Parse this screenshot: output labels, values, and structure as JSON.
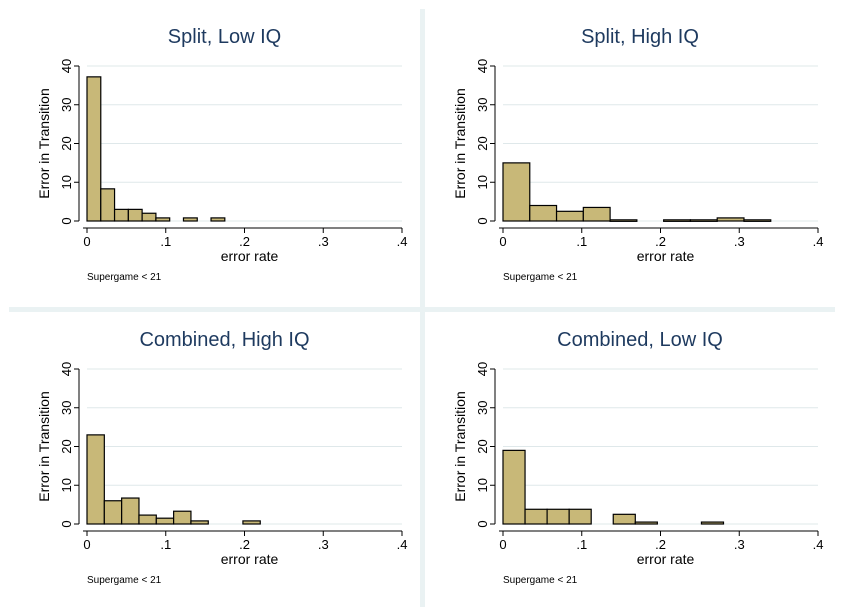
{
  "chart_data": [
    {
      "type": "bar",
      "title": "Split, Low IQ",
      "xlabel": "error rate",
      "ylabel": "Error in Transition",
      "note": "Supergame < 21",
      "xlim": [
        0,
        0.4
      ],
      "ylim": [
        0,
        40
      ],
      "xticks": [
        0,
        0.1,
        0.2,
        0.3,
        0.4
      ],
      "xtick_labels": [
        "0",
        ".1",
        ".2",
        ".3",
        ".4"
      ],
      "yticks": [
        0,
        10,
        20,
        30,
        40
      ],
      "ytick_labels": [
        "0",
        "10",
        "20",
        "30",
        "40"
      ],
      "grid": true,
      "bins": [
        {
          "x0": 0.0,
          "x1": 0.0175,
          "y": 37.2
        },
        {
          "x0": 0.0175,
          "x1": 0.035,
          "y": 8.3
        },
        {
          "x0": 0.035,
          "x1": 0.0525,
          "y": 3.0
        },
        {
          "x0": 0.0525,
          "x1": 0.07,
          "y": 3.0
        },
        {
          "x0": 0.07,
          "x1": 0.0875,
          "y": 2.0
        },
        {
          "x0": 0.0875,
          "x1": 0.105,
          "y": 0.8
        },
        {
          "x0": 0.1225,
          "x1": 0.14,
          "y": 0.8
        },
        {
          "x0": 0.1575,
          "x1": 0.175,
          "y": 0.8
        }
      ],
      "color": "#c8b878"
    },
    {
      "type": "bar",
      "title": "Split, High IQ",
      "xlabel": "error rate",
      "ylabel": "Error in Transition",
      "note": "Supergame < 21",
      "xlim": [
        0,
        0.4
      ],
      "ylim": [
        0,
        40
      ],
      "xticks": [
        0,
        0.1,
        0.2,
        0.3,
        0.4
      ],
      "xtick_labels": [
        "0",
        ".1",
        ".2",
        ".3",
        ".4"
      ],
      "yticks": [
        0,
        10,
        20,
        30,
        40
      ],
      "ytick_labels": [
        "0",
        "10",
        "20",
        "30",
        "40"
      ],
      "grid": true,
      "bins": [
        {
          "x0": 0.0,
          "x1": 0.034,
          "y": 15.0
        },
        {
          "x0": 0.034,
          "x1": 0.068,
          "y": 4.0
        },
        {
          "x0": 0.068,
          "x1": 0.102,
          "y": 2.5
        },
        {
          "x0": 0.102,
          "x1": 0.136,
          "y": 3.5
        },
        {
          "x0": 0.136,
          "x1": 0.17,
          "y": 0.3
        },
        {
          "x0": 0.204,
          "x1": 0.238,
          "y": 0.3
        },
        {
          "x0": 0.238,
          "x1": 0.272,
          "y": 0.3
        },
        {
          "x0": 0.272,
          "x1": 0.306,
          "y": 0.8
        },
        {
          "x0": 0.306,
          "x1": 0.34,
          "y": 0.3
        }
      ],
      "color": "#c8b878"
    },
    {
      "type": "bar",
      "title": "Combined, High IQ",
      "xlabel": "error rate",
      "ylabel": "Error in Transition",
      "note": "Supergame < 21",
      "xlim": [
        0,
        0.4
      ],
      "ylim": [
        0,
        40
      ],
      "xticks": [
        0,
        0.1,
        0.2,
        0.3,
        0.4
      ],
      "xtick_labels": [
        "0",
        ".1",
        ".2",
        ".3",
        ".4"
      ],
      "yticks": [
        0,
        10,
        20,
        30,
        40
      ],
      "ytick_labels": [
        "0",
        "10",
        "20",
        "30",
        "40"
      ],
      "grid": true,
      "bins": [
        {
          "x0": 0.0,
          "x1": 0.022,
          "y": 23.0
        },
        {
          "x0": 0.022,
          "x1": 0.044,
          "y": 6.0
        },
        {
          "x0": 0.044,
          "x1": 0.066,
          "y": 6.7
        },
        {
          "x0": 0.066,
          "x1": 0.088,
          "y": 2.3
        },
        {
          "x0": 0.088,
          "x1": 0.11,
          "y": 1.5
        },
        {
          "x0": 0.11,
          "x1": 0.132,
          "y": 3.3
        },
        {
          "x0": 0.132,
          "x1": 0.154,
          "y": 0.8
        },
        {
          "x0": 0.198,
          "x1": 0.22,
          "y": 0.8
        }
      ],
      "color": "#c8b878"
    },
    {
      "type": "bar",
      "title": "Combined, Low IQ",
      "xlabel": "error rate",
      "ylabel": "Error in Transition",
      "note": "Supergame < 21",
      "xlim": [
        0,
        0.4
      ],
      "ylim": [
        0,
        40
      ],
      "xticks": [
        0,
        0.1,
        0.2,
        0.3,
        0.4
      ],
      "xtick_labels": [
        "0",
        ".1",
        ".2",
        ".3",
        ".4"
      ],
      "yticks": [
        0,
        10,
        20,
        30,
        40
      ],
      "ytick_labels": [
        "0",
        "10",
        "20",
        "30",
        "40"
      ],
      "grid": true,
      "bins": [
        {
          "x0": 0.0,
          "x1": 0.028,
          "y": 19.0
        },
        {
          "x0": 0.028,
          "x1": 0.056,
          "y": 3.8
        },
        {
          "x0": 0.056,
          "x1": 0.084,
          "y": 3.8
        },
        {
          "x0": 0.084,
          "x1": 0.112,
          "y": 3.8
        },
        {
          "x0": 0.14,
          "x1": 0.168,
          "y": 2.5
        },
        {
          "x0": 0.168,
          "x1": 0.196,
          "y": 0.5
        },
        {
          "x0": 0.252,
          "x1": 0.28,
          "y": 0.5
        }
      ],
      "color": "#c8b878"
    }
  ]
}
